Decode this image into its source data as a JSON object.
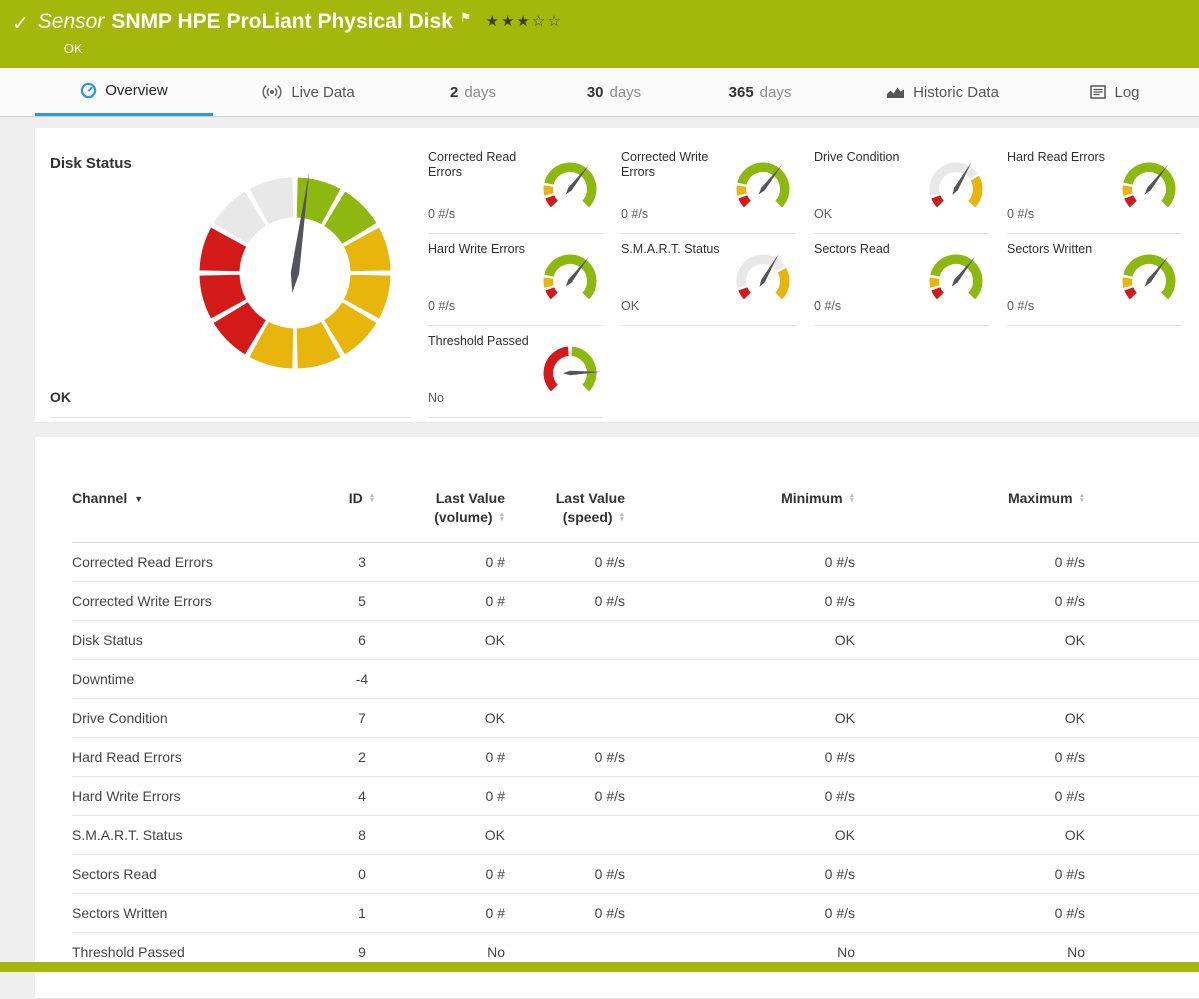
{
  "header": {
    "kind": "Sensor",
    "title": "SNMP HPE ProLiant Physical Disk",
    "status": "OK",
    "rating": "★★★☆☆"
  },
  "tabs": [
    {
      "label": "Overview",
      "icon": "overview",
      "active": true
    },
    {
      "label": "Live Data",
      "icon": "live"
    },
    {
      "value": "2",
      "label": "days"
    },
    {
      "value": "30",
      "label": "days"
    },
    {
      "value": "365",
      "label": "days"
    },
    {
      "label": "Historic Data",
      "icon": "historic"
    },
    {
      "label": "Log",
      "icon": "log"
    }
  ],
  "disk_status_panel": {
    "title": "Disk Status",
    "status": "OK",
    "big_gauge": {
      "segments": [
        "green",
        "green",
        "yellow",
        "yellow",
        "yellow",
        "yellow",
        "yellow",
        "red",
        "red",
        "red",
        "gray",
        "gray"
      ],
      "needle_angle": 8
    },
    "mini_gauges": [
      {
        "label": "Corrected Read Errors",
        "value": "0 #/s",
        "type": "counter"
      },
      {
        "label": "Corrected Write Errors",
        "value": "0 #/s",
        "type": "counter"
      },
      {
        "label": "Drive Condition",
        "value": "OK",
        "type": "status"
      },
      {
        "label": "Hard Read Errors",
        "value": "0 #/s",
        "type": "counter"
      },
      {
        "label": "Hard Write Errors",
        "value": "0 #/s",
        "type": "counter"
      },
      {
        "label": "S.M.A.R.T. Status",
        "value": "OK",
        "type": "status"
      },
      {
        "label": "Sectors Read",
        "value": "0 #/s",
        "type": "counter"
      },
      {
        "label": "Sectors Written",
        "value": "0 #/s",
        "type": "counter"
      },
      {
        "label": "Threshold Passed",
        "value": "No",
        "type": "threshold"
      }
    ]
  },
  "gauge_defs": {
    "counter": {
      "segments": [
        {
          "color": "red",
          "from": -135,
          "to": -110
        },
        {
          "color": "yellow",
          "from": -106,
          "to": -81
        },
        {
          "color": "green",
          "from": -77,
          "to": 135
        }
      ],
      "needle": 38
    },
    "status": {
      "segments": [
        {
          "color": "red",
          "from": -135,
          "to": -110
        },
        {
          "color": "gray",
          "from": -106,
          "to": 55
        },
        {
          "color": "yellow",
          "from": 59,
          "to": 135
        }
      ],
      "needle": 30
    },
    "threshold": {
      "segments": [
        {
          "color": "red",
          "from": -135,
          "to": -3
        },
        {
          "color": "green",
          "from": 3,
          "to": 135
        }
      ],
      "needle": 88
    }
  },
  "colors": {
    "brand_green": "#a3b80a",
    "accent_blue": "#2e9bd4",
    "gauge_green": "#8cb810",
    "gauge_yellow": "#e8b50c",
    "gauge_red": "#d31a18",
    "gauge_gray": "#e8e8e8",
    "needle": "#54555a"
  },
  "table": {
    "columns": [
      {
        "label": "Channel",
        "dropdown": true
      },
      {
        "label": "ID",
        "sort": true
      },
      {
        "label": "Last Value",
        "label2": "(volume)",
        "sort": true
      },
      {
        "label": "Last Value",
        "label2": "(speed)",
        "sort": true
      },
      {
        "label": "Minimum",
        "sort": true
      },
      {
        "label": "Maximum",
        "sort": true
      }
    ],
    "rows": [
      {
        "cells": [
          "Corrected Read Errors",
          "3",
          "0 #",
          "0 #/s",
          "0 #/s",
          "0 #/s"
        ]
      },
      {
        "cells": [
          "Corrected Write Errors",
          "5",
          "0 #",
          "0 #/s",
          "0 #/s",
          "0 #/s"
        ]
      },
      {
        "cells": [
          "Disk Status",
          "6",
          "OK",
          "",
          "OK",
          "OK"
        ]
      },
      {
        "cells": [
          "Downtime",
          "-4",
          "",
          "",
          "",
          ""
        ]
      },
      {
        "cells": [
          "Drive Condition",
          "7",
          "OK",
          "",
          "OK",
          "OK"
        ]
      },
      {
        "cells": [
          "Hard Read Errors",
          "2",
          "0 #",
          "0 #/s",
          "0 #/s",
          "0 #/s"
        ]
      },
      {
        "cells": [
          "Hard Write Errors",
          "4",
          "0 #",
          "0 #/s",
          "0 #/s",
          "0 #/s"
        ]
      },
      {
        "cells": [
          "S.M.A.R.T. Status",
          "8",
          "OK",
          "",
          "OK",
          "OK"
        ]
      },
      {
        "cells": [
          "Sectors Read",
          "0",
          "0 #",
          "0 #/s",
          "0 #/s",
          "0 #/s"
        ]
      },
      {
        "cells": [
          "Sectors Written",
          "1",
          "0 #",
          "0 #/s",
          "0 #/s",
          "0 #/s"
        ]
      },
      {
        "cells": [
          "Threshold Passed",
          "9",
          "No",
          "",
          "No",
          "No"
        ]
      }
    ]
  }
}
